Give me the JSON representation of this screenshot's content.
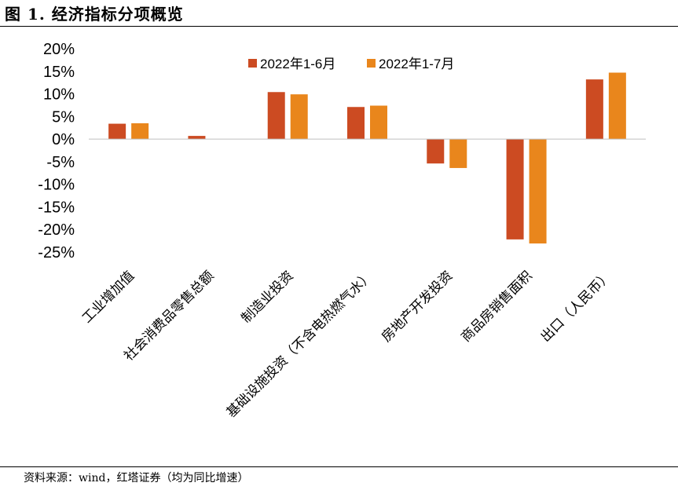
{
  "figure": {
    "title": "图 1. 经济指标分项概览",
    "source": "资料来源：wind，红塔证券（均为同比增速）"
  },
  "chart_data": {
    "type": "bar",
    "categories": [
      "工业增加值",
      "社会消费品零售总额",
      "制造业投资",
      "基础设施投资（不含电热燃气水）",
      "房地产开发投资",
      "商品房销售面积",
      "出口（人民币）"
    ],
    "series": [
      {
        "name": "2022年1-6月",
        "values": [
          3.4,
          0.7,
          10.4,
          7.1,
          -5.4,
          -22.2,
          13.2
        ],
        "color": "#CC4B22"
      },
      {
        "name": "2022年1-7月",
        "values": [
          3.5,
          null,
          9.9,
          7.4,
          -6.4,
          -23.1,
          14.7
        ],
        "color": "#E9861C"
      }
    ],
    "ylim": [
      -25,
      20
    ],
    "yticks": [
      20,
      15,
      10,
      5,
      0,
      -5,
      -10,
      -15,
      -20,
      -25
    ],
    "ytick_labels": [
      "20%",
      "15%",
      "10%",
      "5%",
      "0%",
      "-5%",
      "-10%",
      "-15%",
      "-20%",
      "-25%"
    ],
    "legend": "top-center",
    "grid": false
  }
}
